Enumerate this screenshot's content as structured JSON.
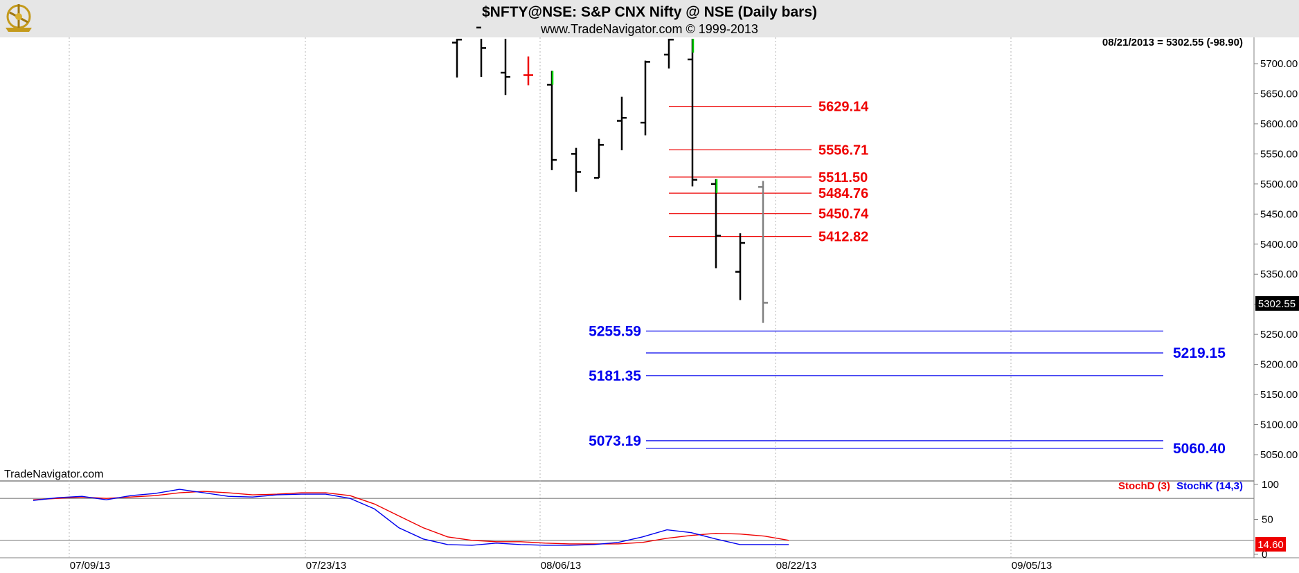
{
  "header": {
    "title": "$NFTY@NSE:  S&P CNX Nifty @ NSE  (Daily bars)",
    "subtitle": "www.TradeNavigator.com © 1999-2013",
    "logo_icon": "sextant-logo-icon"
  },
  "colors": {
    "background": "#ffffff",
    "header_bg": "#e6e6e6",
    "grid": "#b4b4b4",
    "bar": "#000000",
    "bar_up_tick": "#00cc00",
    "bar_red": "#ee0000",
    "bar_current": "#808080",
    "resistance": "#ee0000",
    "support": "#0000ee",
    "stoch_d": "#ee0000",
    "stoch_k": "#0000ee"
  },
  "chart_data": [
    {
      "type": "bar",
      "subtype": "ohlc",
      "ylim": [
        5000,
        5750
      ],
      "yticks": [
        "5700.00",
        "5650.00",
        "5600.00",
        "5550.00",
        "5500.00",
        "5450.00",
        "5400.00",
        "5350.00",
        "5300.00",
        "5250.00",
        "5200.00",
        "5150.00",
        "5100.00",
        "5050.00"
      ],
      "ytick_values": [
        5700,
        5650,
        5600,
        5550,
        5500,
        5450,
        5400,
        5350,
        5300,
        5250,
        5200,
        5150,
        5100,
        5050
      ],
      "xticks": [
        "07/09/13",
        "07/23/13",
        "08/06/13",
        "08/22/13",
        "09/05/13"
      ],
      "grid": true,
      "info_label": "08/21/2013 = 5302.55 (-98.90)",
      "last_price_label": "5302.55",
      "last_price": 5302.55,
      "watermark": "TradeNavigator.com",
      "bars": [
        {
          "date": "07/26/13",
          "open": 5735,
          "high": 5760,
          "low": 5677,
          "close": 5740
        },
        {
          "date": "07/29/13",
          "open": 5760,
          "high": 5770,
          "low": 5678,
          "close": 5726
        },
        {
          "date": "07/30/13",
          "open": 5685,
          "high": 5760,
          "low": 5648,
          "close": 5678,
          "color": "bar"
        },
        {
          "date": "07/31/13",
          "open": 5681,
          "high": 5712,
          "low": 5664,
          "close": 5681,
          "color": "bar_red"
        },
        {
          "date": "08/01/13",
          "open": 5665,
          "high": 5688,
          "low": 5523,
          "close": 5540,
          "green_tick": true
        },
        {
          "date": "08/02/13",
          "open": 5550,
          "high": 5560,
          "low": 5487,
          "close": 5520
        },
        {
          "date": "08/05/13",
          "open": 5510,
          "high": 5575,
          "low": 5510,
          "close": 5565
        },
        {
          "date": "08/06/13",
          "open": 5605,
          "high": 5645,
          "low": 5556,
          "close": 5610
        },
        {
          "date": "08/07/13",
          "open": 5602,
          "high": 5705,
          "low": 5581,
          "close": 5703
        },
        {
          "date": "08/08/13",
          "open": 5715,
          "high": 5755,
          "low": 5692,
          "close": 5740
        },
        {
          "date": "08/13/13",
          "open": 5707,
          "high": 5755,
          "low": 5496,
          "close": 5507,
          "green_tick": true
        },
        {
          "date": "08/14/13",
          "open": 5500,
          "high": 5508,
          "low": 5360,
          "close": 5414,
          "green_tick": true
        },
        {
          "date": "08/16/13",
          "open": 5354,
          "high": 5418,
          "low": 5307,
          "close": 5402
        },
        {
          "date": "08/21/13",
          "open": 5495,
          "high": 5505,
          "low": 5269,
          "close": 5302.55,
          "color": "bar_current"
        }
      ],
      "resistance_levels": [
        {
          "label": "5629.14",
          "value": 5629.14
        },
        {
          "label": "5556.71",
          "value": 5556.71
        },
        {
          "label": "5511.50",
          "value": 5511.5
        },
        {
          "label": "5484.76",
          "value": 5484.76
        },
        {
          "label": "5450.74",
          "value": 5450.74
        },
        {
          "label": "5412.82",
          "value": 5412.82
        }
      ],
      "support_levels": [
        {
          "label": "5255.59",
          "value": 5255.59,
          "label_side": "left"
        },
        {
          "label": "5219.15",
          "value": 5219.15,
          "label_side": "right"
        },
        {
          "label": "5181.35",
          "value": 5181.35,
          "label_side": "left"
        },
        {
          "label": "5073.19",
          "value": 5073.19,
          "label_side": "left"
        },
        {
          "label": "5060.40",
          "value": 5060.4,
          "label_side": "right"
        }
      ]
    },
    {
      "type": "line",
      "subtype": "stochastic",
      "ylim": [
        0,
        108
      ],
      "yticks": [
        "100",
        "50",
        "0"
      ],
      "ytick_values": [
        100,
        50,
        0
      ],
      "reference_lines": [
        80,
        20
      ],
      "last_value_label": "14.60",
      "last_value": 14.6,
      "series": [
        {
          "name": "StochD (3)",
          "color": "stoch_d",
          "values": [
            78,
            80,
            82,
            80,
            82,
            84,
            88,
            90,
            88,
            85,
            86,
            88,
            88,
            84,
            72,
            55,
            38,
            25,
            20,
            18,
            18,
            16,
            15,
            15,
            15,
            17,
            23,
            27,
            30,
            29,
            26,
            20
          ]
        },
        {
          "name": "StochK (14,3)",
          "color": "stoch_k",
          "values": [
            77,
            81,
            83,
            78,
            84,
            87,
            93,
            88,
            83,
            82,
            85,
            86,
            86,
            80,
            65,
            38,
            22,
            14,
            13,
            16,
            14,
            13,
            13,
            14,
            17,
            25,
            35,
            31,
            22,
            14,
            14,
            14
          ]
        }
      ]
    }
  ]
}
